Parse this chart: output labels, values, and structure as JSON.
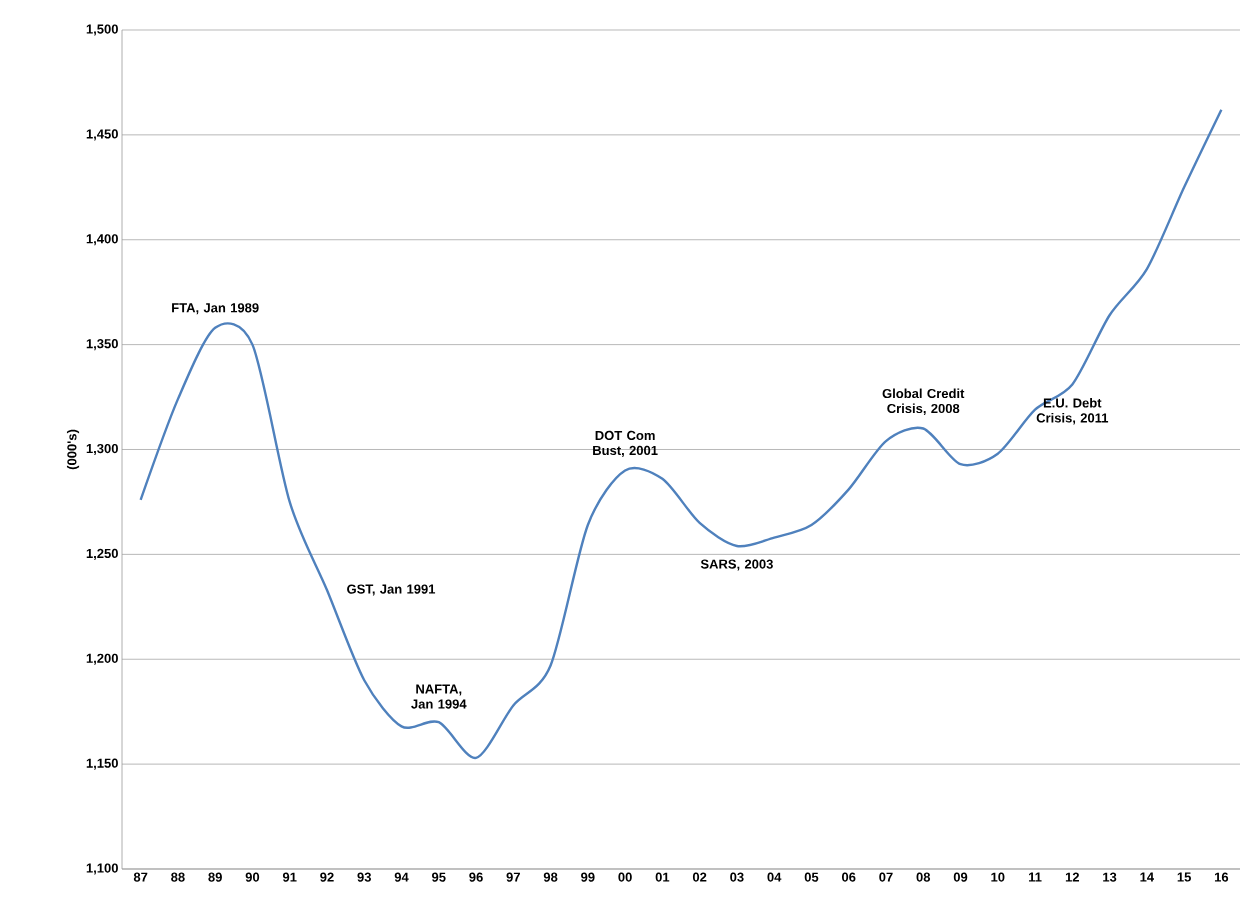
{
  "chart_data": {
    "type": "line",
    "ylabel": "(000's)",
    "categories": [
      "87",
      "88",
      "89",
      "90",
      "91",
      "92",
      "93",
      "94",
      "95",
      "96",
      "97",
      "98",
      "99",
      "00",
      "01",
      "02",
      "03",
      "04",
      "05",
      "06",
      "07",
      "08",
      "09",
      "10",
      "11",
      "12",
      "13",
      "14",
      "15",
      "16"
    ],
    "values": [
      1276,
      1324,
      1358,
      1350,
      1275,
      1233,
      1190,
      1168,
      1170,
      1153,
      1178,
      1197,
      1264,
      1290,
      1286,
      1265,
      1254,
      1258,
      1264,
      1281,
      1304,
      1310,
      1293,
      1298,
      1319,
      1331,
      1364,
      1386,
      1425,
      1462
    ],
    "color": "#4f81bd",
    "ylim": [
      1100,
      1500
    ],
    "yticks": [
      {
        "value": 1100,
        "label": "1,100"
      },
      {
        "value": 1150,
        "label": "1,150"
      },
      {
        "value": 1200,
        "label": "1,200"
      },
      {
        "value": 1250,
        "label": "1,250"
      },
      {
        "value": 1300,
        "label": "1,300"
      },
      {
        "value": 1350,
        "label": "1,350"
      },
      {
        "value": 1400,
        "label": "1,400"
      },
      {
        "value": 1450,
        "label": "1,450"
      },
      {
        "value": 1500,
        "label": "1,500"
      }
    ],
    "grid": "y",
    "annotations": [
      {
        "text": "FTA, Jan 1989",
        "x": "89",
        "y": 1358
      },
      {
        "text": "GST, Jan 1991",
        "x": "92",
        "y": 1233
      },
      {
        "text": "NAFTA, Jan 1994",
        "x": "95",
        "y": 1170
      },
      {
        "text": "DOT Com Bust, 2001",
        "x": "00",
        "y": 1290
      },
      {
        "text": "SARS, 2003",
        "x": "03",
        "y": 1254
      },
      {
        "text": "Global Credit Crisis, 2008",
        "x": "08",
        "y": 1310
      },
      {
        "text": "E.U. Debt Crisis, 2011",
        "x": "12",
        "y": 1331
      }
    ]
  }
}
